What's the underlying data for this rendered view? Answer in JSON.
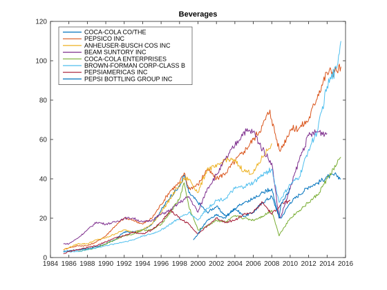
{
  "chart_data": {
    "type": "line",
    "title": "Beverages",
    "xlabel": "",
    "ylabel": "",
    "xlim": [
      1984,
      2016
    ],
    "ylim": [
      0,
      120
    ],
    "xticks": [
      "1984",
      "1986",
      "1988",
      "1990",
      "1992",
      "1994",
      "1996",
      "1998",
      "2000",
      "2002",
      "2004",
      "2006",
      "2008",
      "2010",
      "2012",
      "2014",
      "2016"
    ],
    "yticks": [
      "0",
      "20",
      "40",
      "60",
      "80",
      "100",
      "120"
    ],
    "grid": false,
    "legend_position": "top-left",
    "series": [
      {
        "name": "COCA-COLA CO/THE",
        "color": "#0072BD",
        "points": [
          [
            1985.4,
            3
          ],
          [
            1986,
            3.5
          ],
          [
            1987,
            4
          ],
          [
            1988,
            4.5
          ],
          [
            1989,
            5.5
          ],
          [
            1990,
            7
          ],
          [
            1991,
            9
          ],
          [
            1992,
            13
          ],
          [
            1993,
            13
          ],
          [
            1994,
            14
          ],
          [
            1995,
            17
          ],
          [
            1996,
            24
          ],
          [
            1997,
            31
          ],
          [
            1998,
            36
          ],
          [
            1998.5,
            42
          ],
          [
            1999,
            33
          ],
          [
            2000,
            28
          ],
          [
            2001,
            23
          ],
          [
            2002,
            26
          ],
          [
            2003,
            21
          ],
          [
            2004,
            25
          ],
          [
            2005,
            21
          ],
          [
            2006,
            23
          ],
          [
            2007,
            28
          ],
          [
            2008,
            31
          ],
          [
            2008.8,
            21
          ],
          [
            2009,
            20
          ],
          [
            2010,
            28
          ],
          [
            2011,
            32
          ],
          [
            2012,
            36
          ],
          [
            2013,
            38
          ],
          [
            2014,
            41
          ],
          [
            2015,
            42
          ],
          [
            2015.5,
            40
          ]
        ]
      },
      {
        "name": "PEPSICO INC",
        "color": "#D95319",
        "points": [
          [
            1985.4,
            4
          ],
          [
            1986,
            5
          ],
          [
            1987,
            6
          ],
          [
            1988,
            6
          ],
          [
            1989,
            8
          ],
          [
            1990,
            11
          ],
          [
            1991,
            16
          ],
          [
            1992,
            20
          ],
          [
            1993,
            19
          ],
          [
            1994,
            17
          ],
          [
            1995,
            20
          ],
          [
            1996,
            27
          ],
          [
            1997,
            34
          ],
          [
            1998,
            38
          ],
          [
            1998.5,
            43
          ],
          [
            1999,
            35
          ],
          [
            2000,
            37
          ],
          [
            2001,
            45
          ],
          [
            2002,
            40
          ],
          [
            2003,
            43
          ],
          [
            2004,
            49
          ],
          [
            2005,
            54
          ],
          [
            2006,
            60
          ],
          [
            2007,
            67
          ],
          [
            2007.8,
            75
          ],
          [
            2008,
            70
          ],
          [
            2008.8,
            55
          ],
          [
            2009,
            55
          ],
          [
            2010,
            65
          ],
          [
            2011,
            66
          ],
          [
            2012,
            70
          ],
          [
            2013,
            83
          ],
          [
            2014,
            94
          ],
          [
            2015,
            95
          ],
          [
            2015.5,
            97
          ]
        ]
      },
      {
        "name": "ANHEUSER-BUSCH COS INC",
        "color": "#EDB120",
        "points": [
          [
            1985.4,
            4
          ],
          [
            1986,
            5
          ],
          [
            1987,
            7
          ],
          [
            1988,
            7
          ],
          [
            1989,
            9
          ],
          [
            1990,
            10
          ],
          [
            1991,
            12
          ],
          [
            1992,
            14
          ],
          [
            1993,
            13
          ],
          [
            1994,
            14
          ],
          [
            1995,
            17
          ],
          [
            1996,
            23
          ],
          [
            1997,
            30
          ],
          [
            1998,
            37
          ],
          [
            1998.5,
            40
          ],
          [
            1999,
            40
          ],
          [
            2000,
            33
          ],
          [
            2001,
            45
          ],
          [
            2002,
            46
          ],
          [
            2003,
            50
          ],
          [
            2004,
            49
          ],
          [
            2005,
            44
          ],
          [
            2006,
            43
          ],
          [
            2007,
            51
          ],
          [
            2008,
            58
          ]
        ]
      },
      {
        "name": "BEAM SUNTORY INC",
        "color": "#7E2F8E",
        "points": [
          [
            1985.4,
            7
          ],
          [
            1986,
            7
          ],
          [
            1987,
            10
          ],
          [
            1988,
            14
          ],
          [
            1989,
            18
          ],
          [
            1990,
            17
          ],
          [
            1991,
            18
          ],
          [
            1992,
            20
          ],
          [
            1993,
            20
          ],
          [
            1994,
            18
          ],
          [
            1995,
            19
          ],
          [
            1996,
            22
          ],
          [
            1997,
            24
          ],
          [
            1998,
            28
          ],
          [
            1999,
            31
          ],
          [
            2000,
            23
          ],
          [
            2001,
            35
          ],
          [
            2002,
            42
          ],
          [
            2003,
            50
          ],
          [
            2004,
            57
          ],
          [
            2005,
            64
          ],
          [
            2006,
            64
          ],
          [
            2007,
            55
          ],
          [
            2008,
            48
          ],
          [
            2008.8,
            20
          ],
          [
            2009,
            21
          ],
          [
            2010,
            35
          ],
          [
            2011,
            50
          ],
          [
            2012,
            62
          ],
          [
            2013,
            64
          ],
          [
            2014,
            63
          ]
        ]
      },
      {
        "name": "COCA-COLA ENTERPRISES",
        "color": "#77AC30",
        "points": [
          [
            1987,
            3
          ],
          [
            1988,
            4
          ],
          [
            1989,
            5
          ],
          [
            1990,
            7
          ],
          [
            1991,
            9
          ],
          [
            1992,
            11
          ],
          [
            1993,
            12
          ],
          [
            1994,
            14
          ],
          [
            1995,
            14
          ],
          [
            1996,
            17
          ],
          [
            1997,
            23
          ],
          [
            1998,
            30
          ],
          [
            1998.5,
            38
          ],
          [
            1999,
            26
          ],
          [
            2000,
            14
          ],
          [
            2001,
            16
          ],
          [
            2002,
            19
          ],
          [
            2003,
            18
          ],
          [
            2004,
            21
          ],
          [
            2005,
            20
          ],
          [
            2006,
            19
          ],
          [
            2007,
            21
          ],
          [
            2008,
            24
          ],
          [
            2008.8,
            11
          ],
          [
            2009,
            13
          ],
          [
            2010,
            20
          ],
          [
            2011,
            24
          ],
          [
            2012,
            28
          ],
          [
            2013,
            32
          ],
          [
            2014,
            40
          ],
          [
            2015,
            47
          ],
          [
            2015.5,
            51
          ]
        ]
      },
      {
        "name": "BROWN-FORMAN CORP-CLASS B",
        "color": "#4DBEEE",
        "points": [
          [
            1985.4,
            3
          ],
          [
            1986,
            3
          ],
          [
            1987,
            3
          ],
          [
            1988,
            4
          ],
          [
            1989,
            5
          ],
          [
            1990,
            6
          ],
          [
            1991,
            7
          ],
          [
            1992,
            8
          ],
          [
            1993,
            9
          ],
          [
            1994,
            11
          ],
          [
            1995,
            12
          ],
          [
            1996,
            14
          ],
          [
            1997,
            17
          ],
          [
            1998,
            20
          ],
          [
            1999,
            23
          ],
          [
            2000,
            19
          ],
          [
            2001,
            25
          ],
          [
            2002,
            29
          ],
          [
            2003,
            30
          ],
          [
            2004,
            35
          ],
          [
            2005,
            36
          ],
          [
            2006,
            38
          ],
          [
            2007,
            42
          ],
          [
            2008,
            45
          ],
          [
            2008.8,
            28
          ],
          [
            2009,
            30
          ],
          [
            2010,
            37
          ],
          [
            2011,
            41
          ],
          [
            2012,
            55
          ],
          [
            2013,
            65
          ],
          [
            2014,
            87
          ],
          [
            2015,
            96
          ],
          [
            2015.5,
            110
          ]
        ]
      },
      {
        "name": "PEPSIAMERICAS INC",
        "color": "#A2142F",
        "points": [
          [
            1985.4,
            2
          ],
          [
            1986,
            3
          ],
          [
            1987,
            4
          ],
          [
            1988,
            5
          ],
          [
            1989,
            6
          ],
          [
            1990,
            8
          ],
          [
            1991,
            10
          ],
          [
            1992,
            11
          ],
          [
            1993,
            13
          ],
          [
            1994,
            12
          ],
          [
            1995,
            14
          ],
          [
            1996,
            18
          ],
          [
            1997,
            24
          ],
          [
            1998,
            20
          ],
          [
            1999,
            17
          ],
          [
            2000,
            12
          ],
          [
            2001,
            16
          ],
          [
            2002,
            20
          ],
          [
            2003,
            18
          ],
          [
            2004,
            19
          ],
          [
            2005,
            22
          ],
          [
            2006,
            23
          ],
          [
            2007,
            28
          ],
          [
            2008,
            22
          ],
          [
            2009,
            27
          ],
          [
            2010,
            29
          ]
        ]
      },
      {
        "name": "PEPSI BOTTLING GROUP INC",
        "color": "#0072BD",
        "points": [
          [
            1999.5,
            9
          ],
          [
            2000,
            12
          ],
          [
            2001,
            19
          ],
          [
            2002,
            22
          ],
          [
            2003,
            20
          ],
          [
            2004,
            25
          ],
          [
            2005,
            28
          ],
          [
            2006,
            30
          ],
          [
            2007,
            33
          ],
          [
            2008,
            35
          ],
          [
            2008.8,
            20
          ],
          [
            2009,
            27
          ],
          [
            2010,
            35
          ]
        ]
      }
    ]
  }
}
